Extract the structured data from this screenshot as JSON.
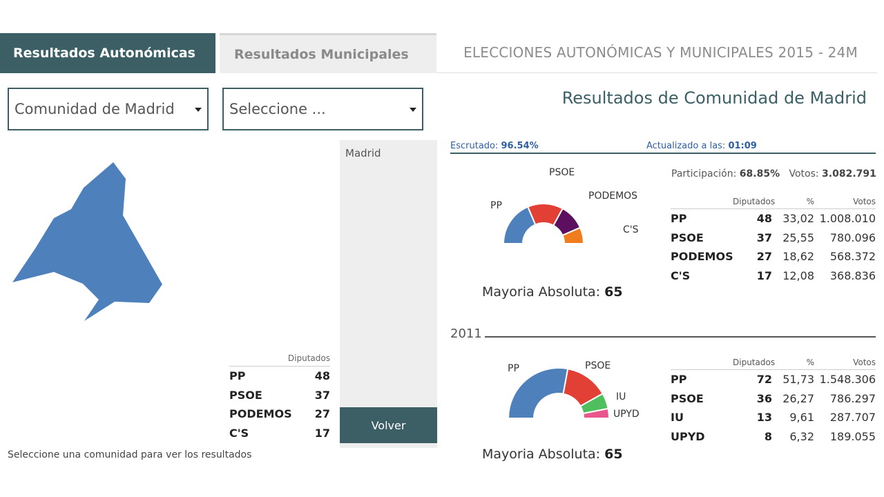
{
  "tabs": {
    "active": "Resultados Autonómicas",
    "inactive": "Resultados Municipales"
  },
  "election_title": "ELECCIONES AUTONÓMICAS Y MUNICIPALES 2015 - 24M",
  "selects": {
    "community": "Comunidad de Madrid",
    "municipality": "Seleccione ..."
  },
  "main_title": "Resultados de Comunidad de Madrid",
  "map": {
    "region": "Comunidad de Madrid",
    "color": "#4e80bc"
  },
  "left_table": {
    "header": "Diputados",
    "rows": [
      {
        "party": "PP",
        "seats": "48"
      },
      {
        "party": "PSOE",
        "seats": "37"
      },
      {
        "party": "PODEMOS",
        "seats": "27"
      },
      {
        "party": "C'S",
        "seats": "17"
      }
    ]
  },
  "municipality_list": {
    "items": [
      "Madrid"
    ]
  },
  "volver_button": "Volver",
  "hint": "Seleccione una comunidad para ver los resultados",
  "status": {
    "escrutado_label": "Escrutado:",
    "escrutado_value": "96.54%",
    "actualizado_label": "Actualizado a las:",
    "actualizado_value": "01:09"
  },
  "participation": {
    "label": "Participación:",
    "value": "68.85%",
    "votos_label": "Votos:",
    "votos_value": "3.082.791"
  },
  "results_2015": {
    "headers": {
      "diputados": "Diputados",
      "pct": "%",
      "votos": "Votos"
    },
    "rows": [
      {
        "party": "PP",
        "seats": "48",
        "pct": "33,02",
        "votes": "1.008.010"
      },
      {
        "party": "PSOE",
        "seats": "37",
        "pct": "25,55",
        "votes": "780.096"
      },
      {
        "party": "PODEMOS",
        "seats": "27",
        "pct": "18,62",
        "votes": "568.372"
      },
      {
        "party": "C'S",
        "seats": "17",
        "pct": "12,08",
        "votes": "368.836"
      }
    ],
    "mayoria_label": "Mayoria Absoluta:",
    "mayoria_value": "65",
    "chart": {
      "labels": [
        "PP",
        "PSOE",
        "PODEMOS",
        "C'S"
      ],
      "seats": [
        48,
        37,
        27,
        17
      ],
      "colors": [
        "#4e80bc",
        "#e23f35",
        "#5b0f5e",
        "#ef7d1e"
      ]
    }
  },
  "year_2011": "2011",
  "results_2011": {
    "headers": {
      "diputados": "Diputados",
      "pct": "%",
      "votos": "Votos"
    },
    "rows": [
      {
        "party": "PP",
        "seats": "72",
        "pct": "51,73",
        "votes": "1.548.306"
      },
      {
        "party": "PSOE",
        "seats": "36",
        "pct": "26,27",
        "votes": "786.297"
      },
      {
        "party": "IU",
        "seats": "13",
        "pct": "9,61",
        "votes": "287.707"
      },
      {
        "party": "UPYD",
        "seats": "8",
        "pct": "6,32",
        "votes": "189.055"
      }
    ],
    "mayoria_label": "Mayoria Absoluta:",
    "mayoria_value": "65",
    "chart": {
      "labels": [
        "PP",
        "PSOE",
        "IU",
        "UPYD"
      ],
      "seats": [
        72,
        36,
        13,
        8
      ],
      "colors": [
        "#4e80bc",
        "#e23f35",
        "#4fbe5c",
        "#e8578c"
      ]
    }
  }
}
